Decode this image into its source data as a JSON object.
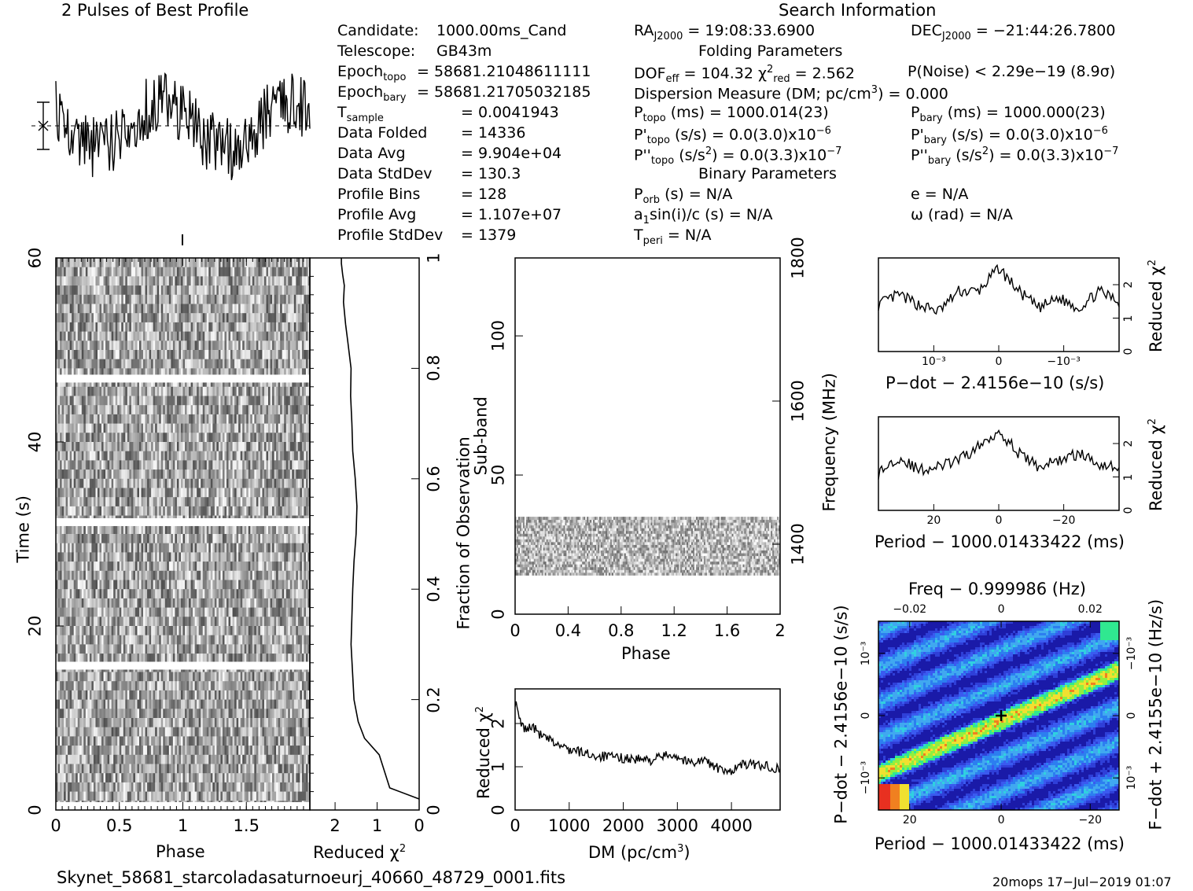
{
  "header": {
    "profile_title": "2 Pulses of Best Profile",
    "search_title": "Search Information"
  },
  "candidate_info": [
    {
      "label": "Candidate:",
      "value": "1000.00ms_Cand"
    },
    {
      "label": "Telescope:",
      "value": "GB43m"
    },
    {
      "label": "Epoch",
      "sub": "topo",
      "value": "= 58681.21048611111"
    },
    {
      "label": "Epoch",
      "sub": "bary",
      "value": "= 58681.21705032185"
    },
    {
      "label": "T",
      "sub": "sample",
      "value": "=   0.0041943"
    },
    {
      "label": "Data Folded",
      "value": "=   14336"
    },
    {
      "label": "Data Avg",
      "value": "=   9.904e+04"
    },
    {
      "label": "Data StdDev",
      "value": "=   130.3"
    },
    {
      "label": "Profile Bins",
      "value": "=   128"
    },
    {
      "label": "Profile Avg",
      "value": "=   1.107e+07"
    },
    {
      "label": "Profile StdDev",
      "value": "=   1379"
    }
  ],
  "search_info": {
    "ra": "19:08:33.6900",
    "dec": "−21:44:26.7800",
    "folding_title": "Folding Parameters",
    "dof_eff": "104.32",
    "chi2_red": "2.562",
    "p_noise": "P(Noise) < 2.29e−19   (8.9σ)",
    "dm_line": "Dispersion Measure (DM; pc/cm",
    "dm_value": ") = 0.000",
    "p_topo": "1000.014(23)",
    "p_bary": "1000.000(23)",
    "pdot_topo": "0.0(3.0)x10",
    "pdot_bary": "0.0(3.0)x10",
    "pdot_exp": "−6",
    "pddot_topo": "0.0(3.3)x10",
    "pddot_bary": "0.0(3.3)x10",
    "pddot_exp": "−7",
    "binary_title": "Binary Parameters",
    "p_orb": "N/A",
    "e": "N/A",
    "a1sini": "N/A",
    "omega": "N/A",
    "t_peri": "N/A"
  },
  "footer": {
    "filename": "Skynet_58681_starcoladasaturnoeurj_40660_48729_0001.fits",
    "stamp": "20mops 17−Jul−2019 01:07"
  },
  "chart_data": [
    {
      "id": "time-phase",
      "type": "heatmap",
      "xlabel": "Phase",
      "ylabel": "Time (s)",
      "xlim": [
        0,
        2
      ],
      "ylim": [
        0,
        60
      ],
      "xticks": [
        "0",
        "0.5",
        "1",
        "1.5"
      ],
      "yticks": [
        "0",
        "20",
        "40",
        "60"
      ],
      "right_axis_label": "Fraction of Observation",
      "right_ticks": [
        "0",
        "0.2",
        "0.4",
        "0.6",
        "0.8",
        "1"
      ],
      "gaps_fraction": [
        0.26,
        0.52,
        0.78
      ],
      "colormap": "grayscale"
    },
    {
      "id": "time-chi2",
      "type": "line",
      "xlabel": "Reduced χ²",
      "xticks": [
        "2",
        "1",
        "0"
      ],
      "xlim": [
        2.6,
        0
      ],
      "x": [
        0,
        0.7,
        0.95,
        1.3,
        1.45,
        1.55,
        1.62,
        1.58,
        1.55,
        1.5,
        1.48,
        1.52,
        1.58,
        1.6,
        1.63,
        1.62,
        1.7,
        1.75,
        1.8,
        1.78,
        1.82,
        1.85,
        1.85
      ],
      "y_fraction": [
        0.02,
        0.04,
        0.1,
        0.13,
        0.16,
        0.2,
        0.3,
        0.4,
        0.45,
        0.5,
        0.55,
        0.6,
        0.65,
        0.7,
        0.75,
        0.8,
        0.85,
        0.88,
        0.92,
        0.95,
        0.97,
        0.99,
        1.0
      ]
    },
    {
      "id": "subband-phase",
      "type": "heatmap",
      "xlabel": "Phase",
      "ylabel": "Sub-band",
      "xlim": [
        0,
        2
      ],
      "ylim": [
        0,
        128
      ],
      "xticks": [
        "0",
        "0.4",
        "0.8",
        "1.2",
        "1.6",
        "2"
      ],
      "yticks": [
        "0",
        "50",
        "100"
      ],
      "right_axis_label": "Frequency (MHz)",
      "right_ticks": [
        "1400",
        "1600",
        "1800"
      ],
      "band_rows": [
        14,
        35
      ],
      "colormap": "grayscale"
    },
    {
      "id": "dm-chi2",
      "type": "line",
      "xlabel": "DM (pc/cm³)",
      "ylabel": "Reduced χ²",
      "xlim": [
        0,
        4900
      ],
      "ylim": [
        0,
        2.8
      ],
      "xticks": [
        "0",
        "1000",
        "2000",
        "3000",
        "4000"
      ],
      "yticks": [
        "0",
        "1",
        "2"
      ],
      "x": [
        0,
        100,
        200,
        300,
        500,
        800,
        1000,
        1500,
        2000,
        2500,
        2900,
        3200,
        3500,
        3900,
        4200,
        4500,
        4900
      ],
      "y": [
        2.5,
        2.0,
        1.85,
        1.95,
        1.7,
        1.5,
        1.4,
        1.25,
        1.2,
        1.15,
        1.3,
        1.1,
        1.15,
        0.85,
        1.05,
        1.05,
        0.95
      ]
    },
    {
      "id": "pdot-chi2",
      "type": "line",
      "xlabel": "P−dot − 2.4156e−10 (s/s)",
      "ylabel": "Reduced χ²",
      "xlim": [
        -1,
        1
      ],
      "ylim": [
        0,
        2.8
      ],
      "xticks": [
        "10⁻³",
        "0",
        "−10⁻³"
      ],
      "yticks": [
        "0",
        "1",
        "2"
      ],
      "x": [
        -1,
        -0.8,
        -0.6,
        -0.4,
        -0.2,
        -0.05,
        0,
        0.05,
        0.2,
        0.4,
        0.6,
        0.8,
        1
      ],
      "y": [
        1.4,
        1.7,
        1.4,
        1.2,
        1.8,
        1.8,
        2.5,
        1.8,
        1.3,
        1.6,
        1.3,
        1.8,
        1.5
      ]
    },
    {
      "id": "period-chi2",
      "type": "line",
      "xlabel": "Period − 1000.01433422 (ms)",
      "ylabel": "Reduced χ²",
      "xlim": [
        25,
        -25
      ],
      "ylim": [
        0,
        2.8
      ],
      "xticks": [
        "20",
        "0",
        "−20"
      ],
      "yticks": [
        "0",
        "1",
        "2"
      ],
      "x": [
        25,
        20,
        15,
        10,
        5,
        2,
        0,
        -2,
        -5,
        -10,
        -15,
        -20,
        -25
      ],
      "y": [
        1.1,
        1.6,
        1.2,
        1.3,
        1.5,
        1.9,
        2.4,
        1.7,
        1.3,
        1.5,
        1.7,
        1.4,
        1.3
      ]
    },
    {
      "id": "period-pdot",
      "type": "heatmap",
      "title": "Freq − 0.999986 (Hz)",
      "xlabel": "Period − 1000.01433422 (ms)",
      "ylabel": "P−dot − 2.4156e−10 (s/s)",
      "right_axis_label": "F−dot + 2.4155e−10 (Hz/s)",
      "xticks": [
        "20",
        "0",
        "−20"
      ],
      "top_ticks": [
        "−0.02",
        "0",
        "0.02"
      ],
      "yticks": [
        "10⁻³",
        "0",
        "−10⁻³"
      ],
      "right_ticks": [
        "−10⁻³",
        "0",
        "10⁻³"
      ],
      "colormap": "rainbow"
    },
    {
      "id": "profile",
      "type": "line",
      "title": "2 Pulses of Best Profile",
      "xlim": [
        0,
        2
      ]
    }
  ]
}
